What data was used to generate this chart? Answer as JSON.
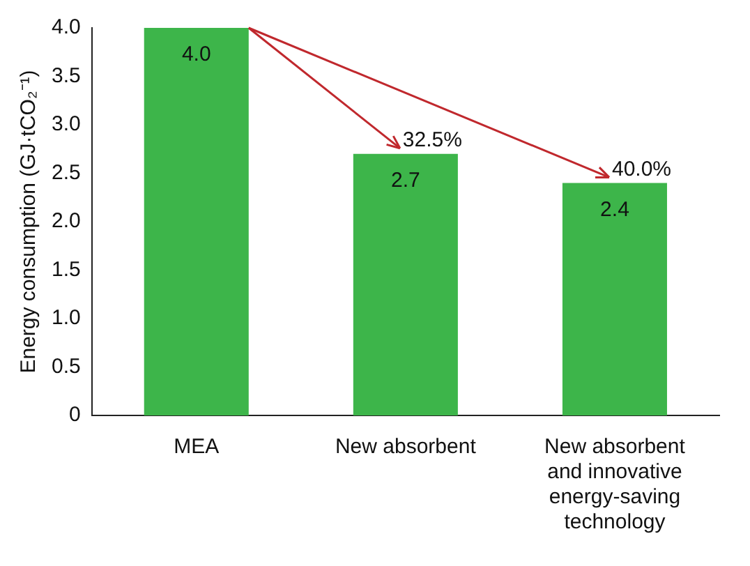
{
  "chart_data": {
    "type": "bar",
    "ylabel": "Energy consumption (GJ·tCO₂⁻¹)",
    "categories": [
      "MEA",
      "New absorbent",
      "New absorbent and innovative energy-saving technology"
    ],
    "values": [
      4.0,
      2.7,
      2.4
    ],
    "color": "#3db54a",
    "value_labels": [
      "4.0",
      "2.7",
      "2.4"
    ],
    "ylim": [
      0,
      4
    ],
    "yticks": [
      {
        "value": 0,
        "label": "0"
      },
      {
        "value": 0.5,
        "label": "0.5"
      },
      {
        "value": 1,
        "label": "1.0"
      },
      {
        "value": 1.5,
        "label": "1.5"
      },
      {
        "value": 2,
        "label": "2.0"
      },
      {
        "value": 2.5,
        "label": "2.5"
      },
      {
        "value": 3,
        "label": "3.0"
      },
      {
        "value": 3.5,
        "label": "3.5"
      },
      {
        "value": 4,
        "label": "4.0"
      }
    ],
    "grid": false,
    "legend": false,
    "annotations": [
      {
        "text": "32.5%",
        "x": "New absorbent",
        "y": 2.7
      },
      {
        "text": "40.0%",
        "x": "New absorbent and innovative energy-saving technology",
        "y": 2.4
      }
    ]
  }
}
